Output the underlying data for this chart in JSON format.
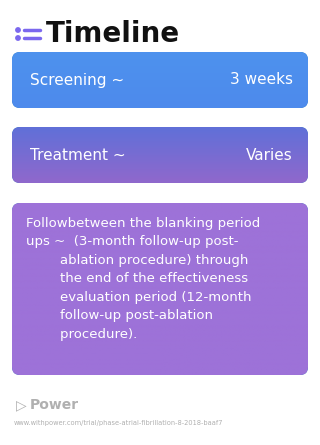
{
  "title": "Timeline",
  "bg_color": "#ffffff",
  "icon_color": "#7b68ee",
  "title_color": "#111111",
  "title_fontsize": 20,
  "rows": [
    {
      "label_left": "Screening ~",
      "label_right": "3 weeks",
      "color_left": "#4d8fea",
      "color_right": "#4d8fea",
      "text_color": "#ffffff",
      "font_size": 11
    },
    {
      "label_left": "Treatment ~",
      "label_right": "Varies",
      "color_left": "#5b6fd4",
      "color_right": "#8b6bc4",
      "text_color": "#ffffff",
      "font_size": 11
    },
    {
      "label_left": "Followbetween the blanking period\nups ~  (3-month follow-up post-\n        ablation procedure) through\n        the end of the effectiveness\n        evaluation period (12-month\n        follow-up post-ablation\n        procedure).",
      "label_right": "",
      "color_left": "#9b6fd4",
      "color_right": "#9b6fd4",
      "text_color": "#ffffff",
      "font_size": 9.5
    }
  ],
  "footer_logo_text": "Power",
  "footer_logo_color": "#b0b0b0",
  "footer_url": "www.withpower.com/trial/phase-atrial-fibrillation-8-2018-baaf7",
  "footer_url_color": "#b0b0b0"
}
